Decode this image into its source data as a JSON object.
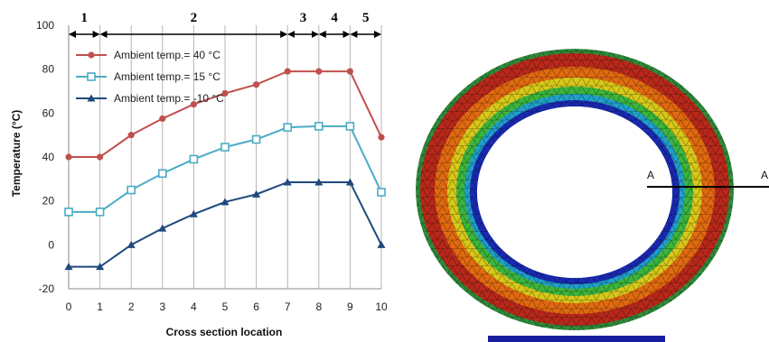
{
  "chart_data": {
    "type": "line",
    "xlabel": "Cross section location",
    "ylabel": "Temperature (°C)",
    "x": [
      0,
      1,
      2,
      3,
      4,
      5,
      6,
      7,
      8,
      9,
      10
    ],
    "xlim": [
      0,
      10
    ],
    "ylim": [
      -20,
      100
    ],
    "x_ticks": [
      "0",
      "1",
      "2",
      "3",
      "4",
      "5",
      "6",
      "7",
      "8",
      "9",
      "10"
    ],
    "y_ticks": [
      "-20",
      "0",
      "20",
      "40",
      "60",
      "80",
      "100"
    ],
    "grid": "vertical",
    "legend_position": "top-left",
    "series": [
      {
        "name": "Ambient temp.= 40 °C",
        "color": "#c0504d",
        "marker": "circle",
        "values": [
          40,
          40,
          50,
          57.5,
          64,
          69,
          73,
          79,
          79,
          79,
          49
        ]
      },
      {
        "name": "Ambient temp.= 15 °C",
        "color": "#4bacc6",
        "marker": "square",
        "values": [
          15,
          15,
          25,
          32.5,
          39,
          44.5,
          48,
          53.5,
          54,
          54,
          24
        ]
      },
      {
        "name": "Ambient temp.= -10 °C",
        "color": "#1f497d",
        "marker": "triangle",
        "values": [
          -10,
          -10,
          0,
          7.5,
          14,
          19.5,
          23,
          28.5,
          28.5,
          28.5,
          0
        ]
      }
    ],
    "zones": [
      {
        "label": "1",
        "from": 0,
        "to": 1
      },
      {
        "label": "2",
        "from": 1,
        "to": 7
      },
      {
        "label": "3",
        "from": 7,
        "to": 8
      },
      {
        "label": "4",
        "from": 8,
        "to": 9
      },
      {
        "label": "5",
        "from": 9,
        "to": 10
      }
    ]
  },
  "cross_section": {
    "section_label_left": "A",
    "section_label_right": "A",
    "colors": {
      "outer_edge": "#2e8b3a",
      "outer": "#b8281a",
      "mid_outer": "#e06a10",
      "mid": "#d8c81a",
      "mid_inner": "#3cb43c",
      "inner": "#20a0c8",
      "innermost": "#1a2ab0",
      "base": "#1a1fa0"
    }
  }
}
